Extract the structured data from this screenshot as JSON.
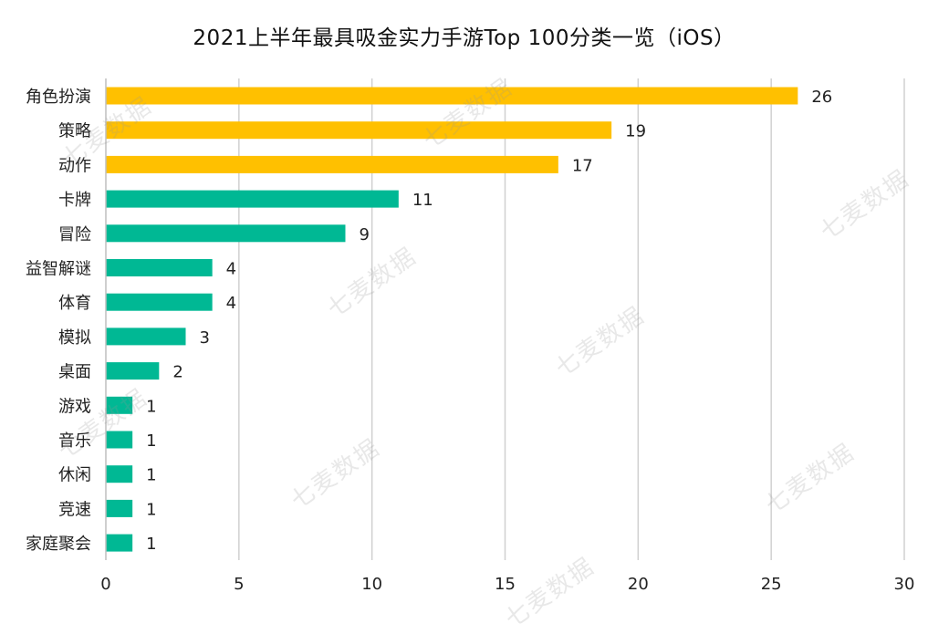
{
  "title": "2021上半年最具吸金实力手游Top 100分类一览（iOS）",
  "watermark": "七麦数据",
  "colors": {
    "top3": "#FFC000",
    "other": "#00B894",
    "grid": "#d0d0d0",
    "text": "#222222"
  },
  "chart_data": {
    "type": "bar",
    "orientation": "horizontal",
    "title": "2021上半年最具吸金实力手游Top 100分类一览（iOS）",
    "categories": [
      "角色扮演",
      "策略",
      "动作",
      "卡牌",
      "冒险",
      "益智解谜",
      "体育",
      "模拟",
      "桌面",
      "游戏",
      "音乐",
      "休闲",
      "竞速",
      "家庭聚会"
    ],
    "values": [
      26,
      19,
      17,
      11,
      9,
      4,
      4,
      3,
      2,
      1,
      1,
      1,
      1,
      1
    ],
    "xlim": [
      0,
      30
    ],
    "xticks": [
      0,
      5,
      10,
      15,
      20,
      25,
      30
    ],
    "grid": "vertical",
    "data_labels": true,
    "xlabel": "",
    "ylabel": ""
  }
}
